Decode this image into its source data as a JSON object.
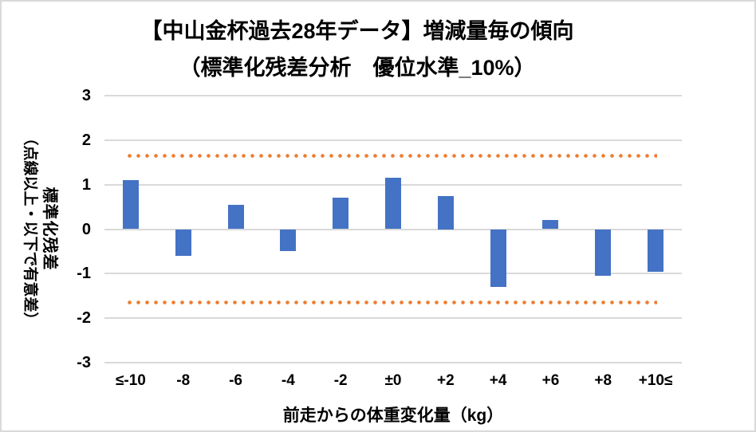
{
  "chart_data": {
    "type": "bar",
    "title": "【中山金杯過去28年データ】増減量毎の傾向",
    "subtitle": "（標準化残差分析　優位水準_10%）",
    "xlabel": "前走からの体重変化量（kg）",
    "ylabel": "標準化残差",
    "ylabel_note": "（点線以上・以下で有意差）",
    "categories": [
      "≤-10",
      "-8",
      "-6",
      "-4",
      "-2",
      "±0",
      "+2",
      "+4",
      "+6",
      "+8",
      "+10≤"
    ],
    "values": [
      1.1,
      -0.6,
      0.55,
      -0.5,
      0.7,
      1.15,
      0.75,
      -1.3,
      0.2,
      -1.05,
      -0.95
    ],
    "significance_upper": 1.65,
    "significance_lower": -1.65,
    "ylim": [
      -3,
      3
    ],
    "yticks": [
      3,
      2,
      1,
      0,
      -1,
      -2,
      -3
    ],
    "grid": true,
    "legend": "none",
    "colors": {
      "bar": "#4472C4",
      "significance_dotted": "#ED7D31",
      "gridline": "#D9D9D9",
      "border": "#D9D9D9",
      "text": "#000000",
      "background": "#FFFFFF"
    }
  }
}
